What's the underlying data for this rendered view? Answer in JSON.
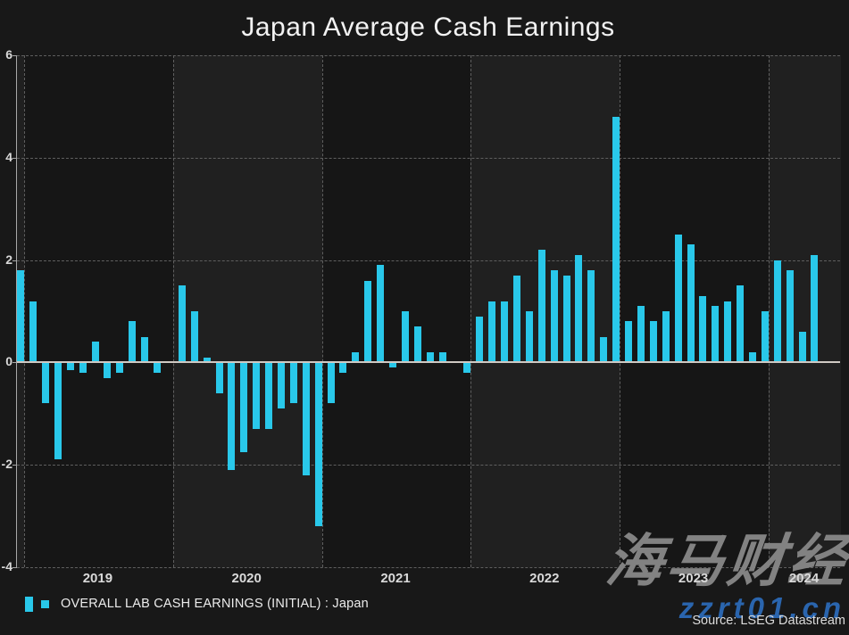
{
  "title": "Japan Average Cash Earnings",
  "legend": {
    "label": "OVERALL LAB CASH EARNINGS (INITIAL) : Japan"
  },
  "source": "Source: LSEG Datastream",
  "watermark": {
    "line1": "海马财经",
    "line2": "zzrt01.cn"
  },
  "colors": {
    "bar": "#29c8ea",
    "page_background": "#181818",
    "band_dark": "#161616",
    "band_light": "#202020",
    "grid": "#5f5f5f",
    "zero_line": "#cfc9c3",
    "axis_text": "#d9d9d9",
    "title_text": "#f2f2f2"
  },
  "chart_data": {
    "type": "bar",
    "title": "Japan Average Cash Earnings",
    "xlabel": "",
    "ylabel": "",
    "ylim": [
      -4,
      6
    ],
    "y_ticks": [
      6,
      4,
      2,
      0,
      -2,
      -4
    ],
    "grid": "dashed",
    "legend_position": "bottom-left",
    "x_year_labels": [
      "2019",
      "2020",
      "2021",
      "2022",
      "2023",
      "2024"
    ],
    "series_name": "OVERALL LAB CASH EARNINGS (INITIAL) : Japan",
    "x": [
      "2018-12",
      "2019-01",
      "2019-02",
      "2019-03",
      "2019-04",
      "2019-05",
      "2019-06",
      "2019-07",
      "2019-08",
      "2019-09",
      "2019-10",
      "2019-11",
      "2019-12",
      "2020-01",
      "2020-02",
      "2020-03",
      "2020-04",
      "2020-05",
      "2020-06",
      "2020-07",
      "2020-08",
      "2020-09",
      "2020-10",
      "2020-11",
      "2020-12",
      "2021-01",
      "2021-02",
      "2021-03",
      "2021-04",
      "2021-05",
      "2021-06",
      "2021-07",
      "2021-08",
      "2021-09",
      "2021-10",
      "2021-11",
      "2021-12",
      "2022-01",
      "2022-02",
      "2022-03",
      "2022-04",
      "2022-05",
      "2022-06",
      "2022-07",
      "2022-08",
      "2022-09",
      "2022-10",
      "2022-11",
      "2022-12",
      "2023-01",
      "2023-02",
      "2023-03",
      "2023-04",
      "2023-05",
      "2023-06",
      "2023-07",
      "2023-08",
      "2023-09",
      "2023-10",
      "2023-11",
      "2023-12",
      "2024-01",
      "2024-02",
      "2024-03",
      "2024-04"
    ],
    "values": [
      1.8,
      1.2,
      -0.8,
      -1.9,
      -0.15,
      -0.2,
      0.4,
      -0.3,
      -0.2,
      0.8,
      0.5,
      -0.2,
      0,
      1.5,
      1.0,
      0.1,
      -0.6,
      -2.1,
      -1.75,
      -1.3,
      -1.3,
      -0.9,
      -0.8,
      -2.2,
      -3.2,
      -0.8,
      -0.2,
      0.2,
      1.6,
      1.9,
      -0.1,
      1.0,
      0.7,
      0.2,
      0.2,
      0,
      -0.2,
      0.9,
      1.2,
      1.2,
      1.7,
      1.0,
      2.2,
      1.8,
      1.7,
      2.1,
      1.8,
      0.5,
      4.8,
      0.8,
      1.1,
      0.8,
      1.0,
      2.5,
      2.3,
      1.3,
      1.1,
      1.2,
      1.5,
      0.2,
      1.0,
      2.0,
      1.8,
      0.6,
      2.1
    ]
  }
}
